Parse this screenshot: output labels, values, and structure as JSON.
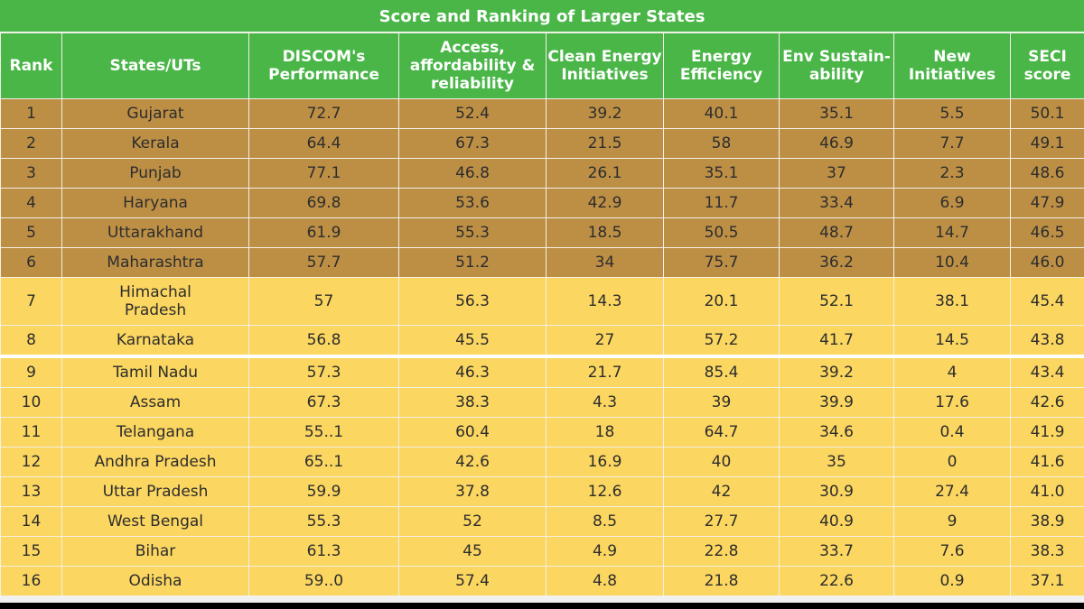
{
  "title": "Score and Ranking of Larger States",
  "headers": [
    "Rank",
    "States/UTs",
    "DISCOM's Performance",
    "Access, affordability & reliability",
    "Clean Energy Initiatives",
    "Energy Efficiency",
    "Env Sustain-ability",
    "New Initiatives",
    "SECI score"
  ],
  "rows": [
    {
      "rank": "1",
      "state": "Gujarat",
      "discom": "72.7",
      "access": "52.4",
      "clean": "39.2",
      "efficiency": "40.1",
      "env": "35.1",
      "new_init": "5.5",
      "seci": "50.1"
    },
    {
      "rank": "2",
      "state": "Kerala",
      "discom": "64.4",
      "access": "67.3",
      "clean": "21.5",
      "efficiency": "58",
      "env": "46.9",
      "new_init": "7.7",
      "seci": "49.1"
    },
    {
      "rank": "3",
      "state": "Punjab",
      "discom": "77.1",
      "access": "46.8",
      "clean": "26.1",
      "efficiency": "35.1",
      "env": "37",
      "new_init": "2.3",
      "seci": "48.6"
    },
    {
      "rank": "4",
      "state": "Haryana",
      "discom": "69.8",
      "access": "53.6",
      "clean": "42.9",
      "efficiency": "11.7",
      "env": "33.4",
      "new_init": "6.9",
      "seci": "47.9"
    },
    {
      "rank": "5",
      "state": "Uttarakhand",
      "discom": "61.9",
      "access": "55.3",
      "clean": "18.5",
      "efficiency": "50.5",
      "env": "48.7",
      "new_init": "14.7",
      "seci": "46.5"
    },
    {
      "rank": "6",
      "state": "Maharashtra",
      "discom": "57.7",
      "access": "51.2",
      "clean": "34",
      "efficiency": "75.7",
      "env": "36.2",
      "new_init": "10.4",
      "seci": "46.0"
    },
    {
      "rank": "7",
      "state": "Himachal Pradesh",
      "discom": "57",
      "access": "56.3",
      "clean": "14.3",
      "efficiency": "20.1",
      "env": "52.1",
      "new_init": "38.1",
      "seci": "45.4"
    },
    {
      "rank": "8",
      "state": "Karnataka",
      "discom": "56.8",
      "access": "45.5",
      "clean": "27",
      "efficiency": "57.2",
      "env": "41.7",
      "new_init": "14.5",
      "seci": "43.8"
    },
    {
      "rank": "9",
      "state": "Tamil Nadu",
      "discom": "57.3",
      "access": "46.3",
      "clean": "21.7",
      "efficiency": "85.4",
      "env": "39.2",
      "new_init": "4",
      "seci": "43.4"
    },
    {
      "rank": "10",
      "state": "Assam",
      "discom": "67.3",
      "access": "38.3",
      "clean": "4.3",
      "efficiency": "39",
      "env": "39.9",
      "new_init": "17.6",
      "seci": "42.6"
    },
    {
      "rank": "11",
      "state": "Telangana",
      "discom": "55..1",
      "access": "60.4",
      "clean": "18",
      "efficiency": "64.7",
      "env": "34.6",
      "new_init": "0.4",
      "seci": "41.9"
    },
    {
      "rank": "12",
      "state": "Andhra Pradesh",
      "discom": "65..1",
      "access": "42.6",
      "clean": "16.9",
      "efficiency": "40",
      "env": "35",
      "new_init": "0",
      "seci": "41.6"
    },
    {
      "rank": "13",
      "state": "Uttar Pradesh",
      "discom": "59.9",
      "access": "37.8",
      "clean": "12.6",
      "efficiency": "42",
      "env": "30.9",
      "new_init": "27.4",
      "seci": "41.0"
    },
    {
      "rank": "14",
      "state": "West Bengal",
      "discom": "55.3",
      "access": "52",
      "clean": "8.5",
      "efficiency": "27.7",
      "env": "40.9",
      "new_init": "9",
      "seci": "38.9"
    },
    {
      "rank": "15",
      "state": "Bihar",
      "discom": "61.3",
      "access": "45",
      "clean": "4.9",
      "efficiency": "22.8",
      "env": "33.7",
      "new_init": "7.6",
      "seci": "38.3"
    },
    {
      "rank": "16",
      "state": "Odisha",
      "discom": "59..0",
      "access": "57.4",
      "clean": "4.8",
      "efficiency": "21.8",
      "env": "22.6",
      "new_init": "0.9",
      "seci": "37.1"
    }
  ],
  "colors": {
    "header_green": "#4ab648",
    "top_band_brown": "#bd8f45",
    "lower_band_yellow": "#fbd660"
  }
}
